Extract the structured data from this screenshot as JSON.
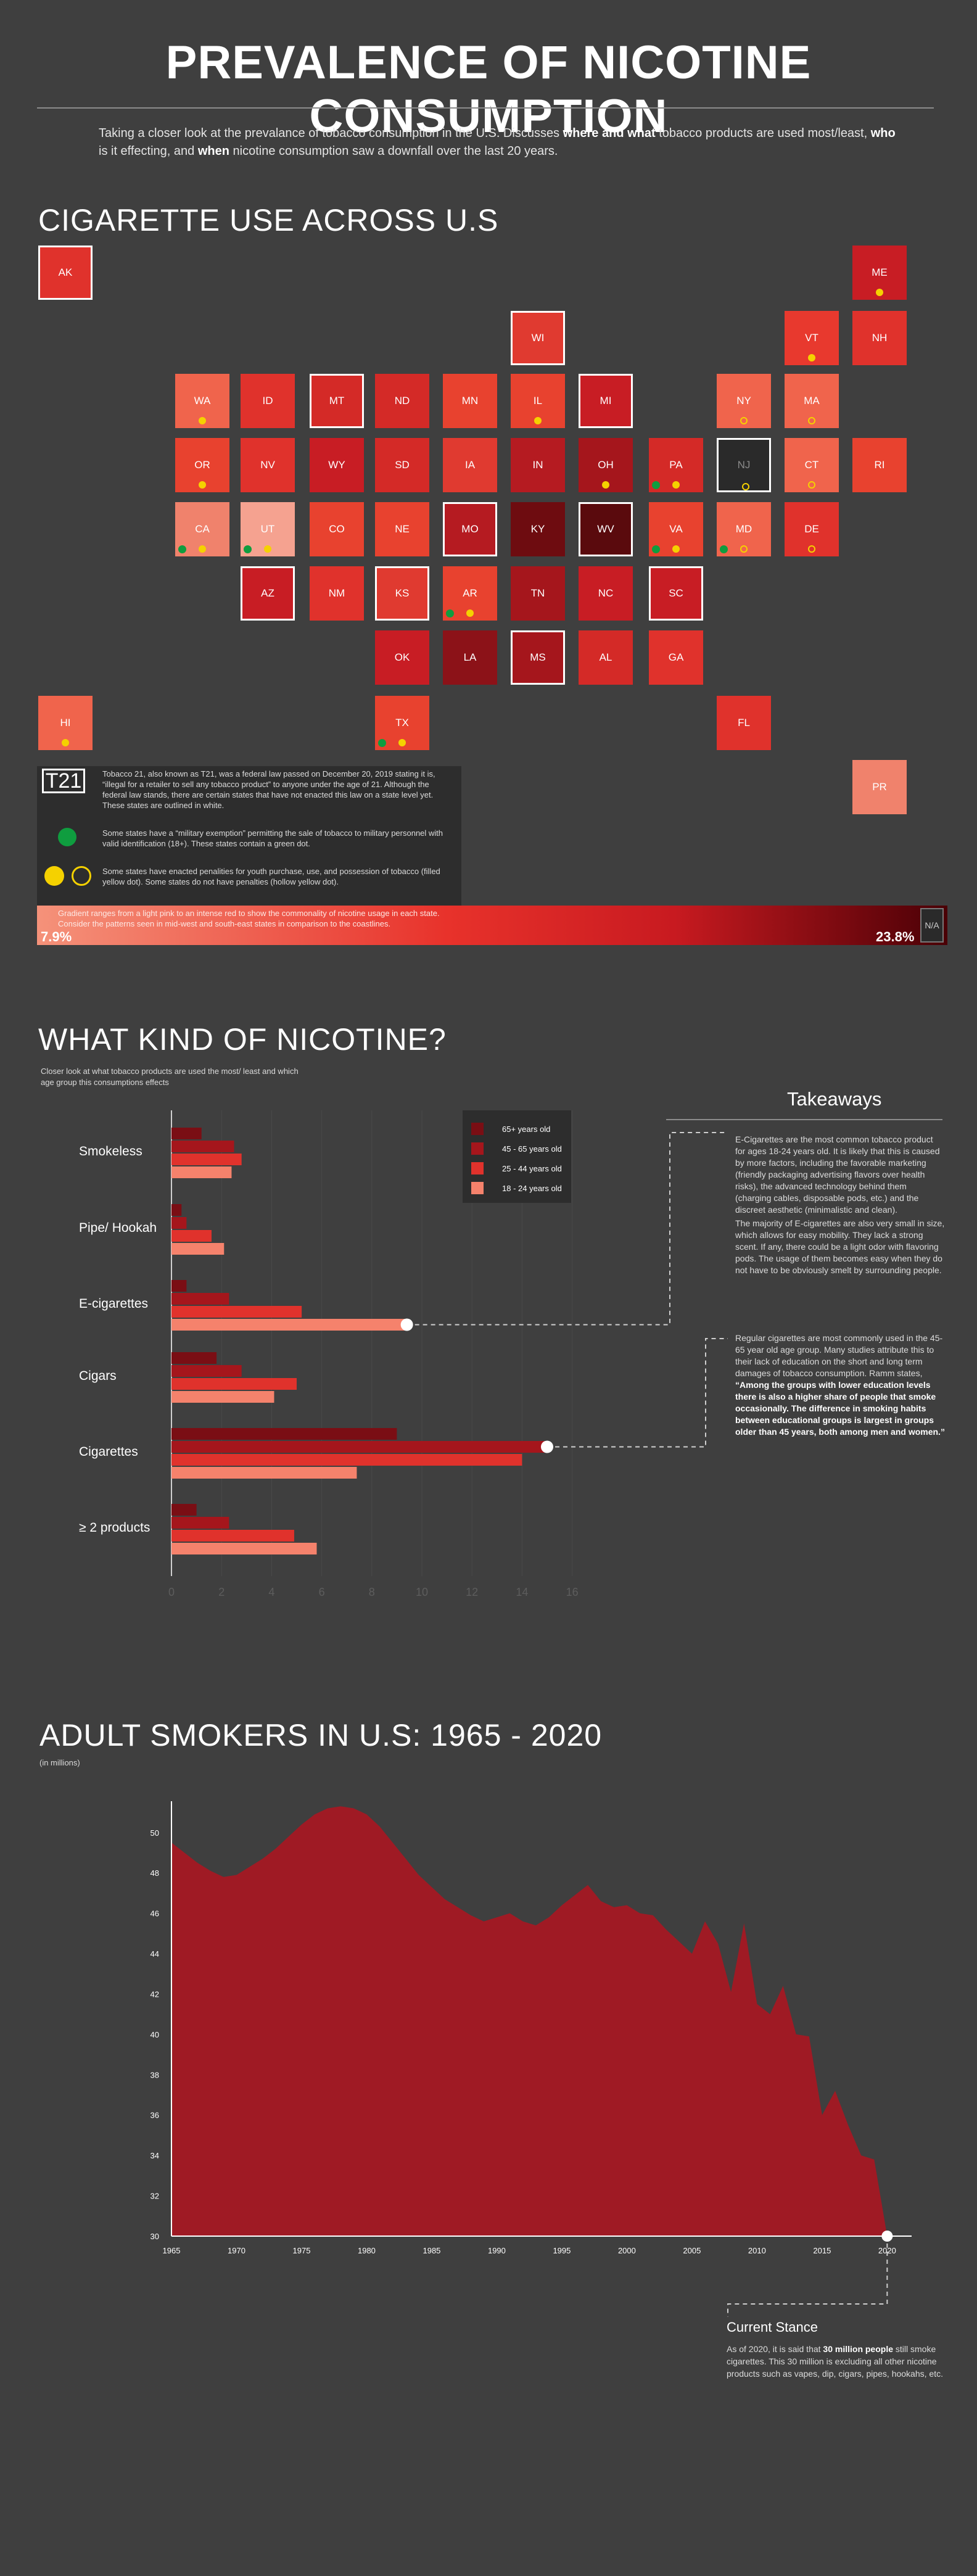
{
  "header": {
    "title": "PREVALENCE OF NICOTINE CONSUMPTION",
    "intro_1": "Taking a closer look at the prevalance of tobacco consumption in the U.S. Discusses ",
    "intro_b1": "where and what",
    "intro_2": " tobacco products are used most/least, ",
    "intro_b2": "who",
    "intro_3": " is it effecting, and ",
    "intro_b3": "when",
    "intro_4": " nicotine consumption saw a downfall over the last 20 years."
  },
  "map": {
    "title": "CIGARETTE USE ACROSS U.S",
    "states": [
      {
        "code": "AK",
        "col": 0,
        "row": 0,
        "fill": "#e0322c",
        "outlined": true,
        "yellow": "",
        "green": false
      },
      {
        "code": "ME",
        "col": 12,
        "row": 0,
        "fill": "#c81d24",
        "outlined": false,
        "yellow": "filled",
        "green": false
      },
      {
        "code": "WI",
        "col": 7,
        "row": 1,
        "fill": "#e03a30",
        "outlined": true,
        "yellow": "",
        "green": false
      },
      {
        "code": "VT",
        "col": 11,
        "row": 1,
        "fill": "#e8392e",
        "outlined": false,
        "yellow": "filled",
        "green": false
      },
      {
        "code": "NH",
        "col": 12,
        "row": 1,
        "fill": "#e0322c",
        "outlined": false,
        "yellow": "",
        "green": false
      },
      {
        "code": "WA",
        "col": 2,
        "row": 2,
        "fill": "#f0644c",
        "outlined": false,
        "yellow": "filled",
        "green": false
      },
      {
        "code": "ID",
        "col": 3,
        "row": 2,
        "fill": "#e0322c",
        "outlined": false,
        "yellow": "",
        "green": false
      },
      {
        "code": "MT",
        "col": 4,
        "row": 2,
        "fill": "#d42a27",
        "outlined": true,
        "yellow": "",
        "green": false
      },
      {
        "code": "ND",
        "col": 5,
        "row": 2,
        "fill": "#d42a27",
        "outlined": false,
        "yellow": "",
        "green": false
      },
      {
        "code": "MN",
        "col": 6,
        "row": 2,
        "fill": "#e8422f",
        "outlined": false,
        "yellow": "",
        "green": false
      },
      {
        "code": "IL",
        "col": 7,
        "row": 2,
        "fill": "#e8422f",
        "outlined": false,
        "yellow": "filled",
        "green": false
      },
      {
        "code": "MI",
        "col": 8,
        "row": 2,
        "fill": "#c81d24",
        "outlined": true,
        "yellow": "",
        "green": false
      },
      {
        "code": "NY",
        "col": 10,
        "row": 2,
        "fill": "#f0644c",
        "outlined": false,
        "yellow": "hollow",
        "green": false
      },
      {
        "code": "MA",
        "col": 11,
        "row": 2,
        "fill": "#f0644c",
        "outlined": false,
        "yellow": "hollow",
        "green": false
      },
      {
        "code": "OR",
        "col": 2,
        "row": 3,
        "fill": "#e8422f",
        "outlined": false,
        "yellow": "filled",
        "green": false
      },
      {
        "code": "NV",
        "col": 3,
        "row": 3,
        "fill": "#e0322c",
        "outlined": false,
        "yellow": "",
        "green": false
      },
      {
        "code": "WY",
        "col": 4,
        "row": 3,
        "fill": "#c81d24",
        "outlined": false,
        "yellow": "",
        "green": false
      },
      {
        "code": "SD",
        "col": 5,
        "row": 3,
        "fill": "#d42a27",
        "outlined": false,
        "yellow": "",
        "green": false
      },
      {
        "code": "IA",
        "col": 6,
        "row": 3,
        "fill": "#e03a30",
        "outlined": false,
        "yellow": "",
        "green": false
      },
      {
        "code": "IN",
        "col": 7,
        "row": 3,
        "fill": "#b51b21",
        "outlined": false,
        "yellow": "",
        "green": false
      },
      {
        "code": "OH",
        "col": 8,
        "row": 3,
        "fill": "#a5161c",
        "outlined": false,
        "yellow": "filled",
        "green": false
      },
      {
        "code": "PA",
        "col": 9,
        "row": 3,
        "fill": "#d42a27",
        "outlined": false,
        "yellow": "filled",
        "green": true
      },
      {
        "code": "NJ",
        "col": 10,
        "row": 3,
        "fill": "#2a2a2a",
        "outlined": true,
        "yellow": "hollow",
        "green": false
      },
      {
        "code": "CT",
        "col": 11,
        "row": 3,
        "fill": "#f0644c",
        "outlined": false,
        "yellow": "hollow",
        "green": false
      },
      {
        "code": "RI",
        "col": 12,
        "row": 3,
        "fill": "#e8422f",
        "outlined": false,
        "yellow": "",
        "green": false
      },
      {
        "code": "CA",
        "col": 2,
        "row": 4,
        "fill": "#f0826c",
        "outlined": false,
        "yellow": "filled",
        "green": true
      },
      {
        "code": "UT",
        "col": 3,
        "row": 4,
        "fill": "#f5a290",
        "outlined": false,
        "yellow": "filled",
        "green": true
      },
      {
        "code": "CO",
        "col": 4,
        "row": 4,
        "fill": "#e8422f",
        "outlined": false,
        "yellow": "",
        "green": false
      },
      {
        "code": "NE",
        "col": 5,
        "row": 4,
        "fill": "#e8422f",
        "outlined": false,
        "yellow": "",
        "green": false
      },
      {
        "code": "MO",
        "col": 6,
        "row": 4,
        "fill": "#b51b21",
        "outlined": true,
        "yellow": "",
        "green": false
      },
      {
        "code": "KY",
        "col": 7,
        "row": 4,
        "fill": "#6e0c10",
        "outlined": false,
        "yellow": "",
        "green": false
      },
      {
        "code": "WV",
        "col": 8,
        "row": 4,
        "fill": "#5a0a0d",
        "outlined": true,
        "yellow": "",
        "green": false
      },
      {
        "code": "VA",
        "col": 9,
        "row": 4,
        "fill": "#e8422f",
        "outlined": false,
        "yellow": "filled",
        "green": true
      },
      {
        "code": "MD",
        "col": 10,
        "row": 4,
        "fill": "#f0644c",
        "outlined": false,
        "yellow": "hollow",
        "green": true
      },
      {
        "code": "DE",
        "col": 11,
        "row": 4,
        "fill": "#e0322c",
        "outlined": false,
        "yellow": "hollow",
        "green": false
      },
      {
        "code": "AZ",
        "col": 3,
        "row": 5,
        "fill": "#c81d24",
        "outlined": true,
        "yellow": "",
        "green": false
      },
      {
        "code": "NM",
        "col": 4,
        "row": 5,
        "fill": "#e0322c",
        "outlined": false,
        "yellow": "",
        "green": false
      },
      {
        "code": "KS",
        "col": 5,
        "row": 5,
        "fill": "#e03a30",
        "outlined": true,
        "yellow": "",
        "green": false
      },
      {
        "code": "AR",
        "col": 6,
        "row": 5,
        "fill": "#e8422f",
        "outlined": false,
        "yellow": "filled",
        "green": true
      },
      {
        "code": "TN",
        "col": 7,
        "row": 5,
        "fill": "#a5161c",
        "outlined": false,
        "yellow": "",
        "green": false
      },
      {
        "code": "NC",
        "col": 8,
        "row": 5,
        "fill": "#c81d24",
        "outlined": false,
        "yellow": "",
        "green": false
      },
      {
        "code": "SC",
        "col": 9,
        "row": 5,
        "fill": "#c81d24",
        "outlined": true,
        "yellow": "",
        "green": false
      },
      {
        "code": "OK",
        "col": 5,
        "row": 6,
        "fill": "#c81d24",
        "outlined": false,
        "yellow": "",
        "green": false
      },
      {
        "code": "LA",
        "col": 6,
        "row": 6,
        "fill": "#8c1218",
        "outlined": false,
        "yellow": "",
        "green": false
      },
      {
        "code": "MS",
        "col": 7,
        "row": 6,
        "fill": "#a5161c",
        "outlined": true,
        "yellow": "",
        "green": false
      },
      {
        "code": "AL",
        "col": 8,
        "row": 6,
        "fill": "#d42a27",
        "outlined": false,
        "yellow": "",
        "green": false
      },
      {
        "code": "GA",
        "col": 9,
        "row": 6,
        "fill": "#e0322c",
        "outlined": false,
        "yellow": "",
        "green": false
      },
      {
        "code": "HI",
        "col": 0,
        "row": 7,
        "fill": "#f0644c",
        "outlined": false,
        "yellow": "filled",
        "green": false
      },
      {
        "code": "TX",
        "col": 5,
        "row": 7,
        "fill": "#e8422f",
        "outlined": false,
        "yellow": "filled",
        "green": true
      },
      {
        "code": "FL",
        "col": 10,
        "row": 7,
        "fill": "#e0322c",
        "outlined": false,
        "yellow": "",
        "green": false
      },
      {
        "code": "PR",
        "col": 12,
        "row": 8,
        "fill": "#f0826c",
        "outlined": false,
        "yellow": "",
        "green": false
      }
    ],
    "legend": {
      "badge": "T21",
      "t21_text": "Tobacco 21, also known as T21, was a federal law passed on December 20, 2019 stating it is, “illegal for a retailer to sell any tobacco product” to anyone under the age of 21. Although the federal law stands, there are certain states that have not enacted this law on a state level yet. These states are outlined in white.",
      "green_text": "Some states have a “military exemption” permitting the sale of tobacco to military personnel with valid identification (18+). These states contain a green dot.",
      "yellow_text": "Some states have enacted penalities for youth purchase, use, and possession of tobacco (filled yellow dot). Some states do not have penalties (hollow yellow dot).",
      "gradient_text": "Gradient ranges from a light pink to an intense red to show the commonality of nicotine usage in each state. Consider the patterns seen in mid-west and south-east states in comparison to the coastlines.",
      "min": "7.9%",
      "max": "23.8%",
      "na": "N/A"
    },
    "colors": {
      "green": "#0f9d3f",
      "yellow": "#f5d100"
    }
  },
  "nicotine": {
    "title": "WHAT KIND OF NICOTINE?",
    "subtitle": "Closer look at what tobacco products are used the most/ least and which age group this consumptions effects",
    "takeaways_title": "Takeaways",
    "take_1": "E-Cigarettes are the most common tobacco product for ages 18-24 years old. It is likely that this is caused by more factors, including the favorable marketing (friendly packaging advertising flavors over health risks), the advanced technology behind them (charging cables, disposable pods, etc.) and the discreet aesthetic (minimalistic and clean).",
    "take_2": "The majority of E-cigarettes are also very small in size, which allows for easy mobility. They lack a strong scent. If any, there could be a light odor with flavoring pods. The usage of them becomes easy when they do not have to be obviously smelt by surrounding people.",
    "take_3": "Regular cigarettes are most commonly used in the 45-65 year old age group. Many studies attribute this to their lack of education on the short and long term damages of tobacco consumption. Ramm states,",
    "take_4": "“Among the groups with lower education levels there is also a higher share of people that smoke occasionally. The difference in smoking habits between educational groups is largest in groups older than 45 years, both among men and women.”"
  },
  "adult": {
    "title": "ADULT SMOKERS IN U.S: 1965 - 2020",
    "subtitle": "(in millions)",
    "stance_title": "Current Stance",
    "stance_1": "As of 2020, it is said that ",
    "stance_b": "30 million people",
    "stance_2": " still smoke cigarettes. This 30 million is excluding all other nicotine products such as vapes, dip, cigars, pipes, hookahs, etc."
  },
  "chart_data": [
    {
      "type": "bar",
      "orientation": "horizontal",
      "categories": [
        "Smokeless",
        "Pipe/ Hookah",
        "E-cigarettes",
        "Cigars",
        "Cigarettes",
        "≥ 2 products"
      ],
      "series": [
        {
          "name": "65+ years old",
          "color": "#7a0e14",
          "values": [
            1.2,
            0.4,
            0.6,
            1.8,
            9.0,
            1.0
          ]
        },
        {
          "name": "45 - 65 years old",
          "color": "#a5161c",
          "values": [
            2.5,
            0.6,
            2.3,
            2.8,
            15.0,
            2.3
          ]
        },
        {
          "name": "25 - 44 years old",
          "color": "#e0322c",
          "values": [
            2.8,
            1.6,
            5.2,
            5.0,
            14.0,
            4.9
          ]
        },
        {
          "name": "18 - 24 years old",
          "color": "#f5826c",
          "values": [
            2.4,
            2.1,
            9.4,
            4.1,
            7.4,
            5.8
          ]
        }
      ],
      "xlim": [
        0,
        16
      ],
      "xticks": [
        0,
        2,
        4,
        6,
        8,
        10,
        12,
        14,
        16
      ],
      "grid": true,
      "legend": "top-right"
    },
    {
      "type": "area",
      "x": [
        1965,
        1966,
        1967,
        1968,
        1969,
        1970,
        1971,
        1972,
        1973,
        1974,
        1975,
        1976,
        1977,
        1978,
        1979,
        1980,
        1981,
        1982,
        1983,
        1984,
        1985,
        1986,
        1987,
        1988,
        1989,
        1990,
        1991,
        1992,
        1993,
        1994,
        1995,
        1996,
        1997,
        1998,
        1999,
        2000,
        2001,
        2002,
        2003,
        2004,
        2005,
        2006,
        2007,
        2008,
        2009,
        2010,
        2011,
        2012,
        2013,
        2014,
        2015,
        2016,
        2017,
        2018,
        2019,
        2020
      ],
      "y": [
        49.5,
        49.0,
        48.5,
        48.1,
        47.8,
        47.9,
        48.3,
        48.7,
        49.2,
        49.8,
        50.4,
        50.9,
        51.2,
        51.3,
        51.2,
        50.9,
        50.3,
        49.5,
        48.7,
        47.9,
        47.3,
        46.7,
        46.3,
        45.9,
        45.6,
        45.8,
        46.0,
        45.6,
        45.4,
        45.8,
        46.4,
        46.9,
        47.4,
        46.6,
        46.3,
        46.4,
        46.0,
        45.9,
        45.2,
        44.6,
        44.0,
        45.6,
        44.5,
        42.1,
        45.5,
        41.5,
        41.0,
        42.4,
        40.0,
        39.9,
        36.0,
        37.2,
        35.5,
        34.0,
        33.8,
        30.0
      ],
      "xticks": [
        1965,
        1970,
        1975,
        1980,
        1985,
        1990,
        1995,
        2000,
        2005,
        2010,
        2015,
        2020
      ],
      "yticks": [
        30,
        32,
        34,
        36,
        38,
        40,
        42,
        44,
        46,
        48,
        50
      ],
      "ylim": [
        30,
        51.4
      ],
      "color": "#9f1a24"
    }
  ]
}
